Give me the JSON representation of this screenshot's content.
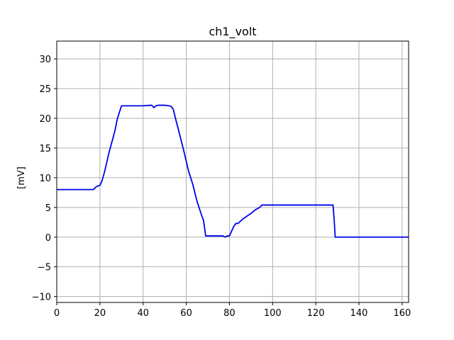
{
  "chart_data": {
    "type": "line",
    "title": "ch1_volt",
    "xlabel": "",
    "ylabel": "[mV]",
    "xlim": [
      0,
      163
    ],
    "ylim": [
      -11,
      33
    ],
    "xticks": [
      0,
      20,
      40,
      60,
      80,
      100,
      120,
      140,
      160
    ],
    "yticks": [
      -10,
      -5,
      0,
      5,
      10,
      15,
      20,
      25,
      30
    ],
    "grid": true,
    "line_color": "#0000ee",
    "series": [
      {
        "x": [
          0,
          5,
          10,
          15,
          17,
          18,
          19,
          20,
          21,
          22,
          23,
          24,
          25,
          26,
          27,
          28,
          29,
          30,
          31,
          32,
          35,
          40,
          44,
          45,
          46,
          47,
          50,
          52,
          53,
          54,
          55,
          57,
          59,
          61,
          63,
          65,
          67,
          68,
          69,
          70,
          75,
          77,
          78,
          79,
          80,
          81,
          82,
          83,
          84,
          86,
          88,
          90,
          92,
          94,
          95,
          96,
          100,
          110,
          120,
          127,
          128,
          128.5,
          129,
          130,
          140,
          150,
          160,
          163
        ],
        "y": [
          8,
          8,
          8,
          8,
          8,
          8.4,
          8.6,
          8.7,
          9.5,
          10.8,
          12.3,
          13.9,
          15.3,
          16.6,
          18.0,
          19.8,
          21.0,
          22.1,
          22.1,
          22.1,
          22.1,
          22.1,
          22.2,
          21.8,
          22.1,
          22.2,
          22.2,
          22.1,
          22.0,
          21.5,
          20.0,
          17.2,
          14.3,
          11.2,
          8.9,
          6.0,
          3.8,
          2.8,
          0.2,
          0.2,
          0.2,
          0.2,
          0.0,
          0.2,
          0.2,
          1.0,
          1.8,
          2.3,
          2.3,
          3.0,
          3.5,
          4.0,
          4.6,
          5.0,
          5.4,
          5.4,
          5.4,
          5.4,
          5.4,
          5.4,
          5.4,
          3.0,
          0.0,
          0.0,
          0.0,
          0.0,
          0.0,
          0.0
        ]
      }
    ]
  }
}
